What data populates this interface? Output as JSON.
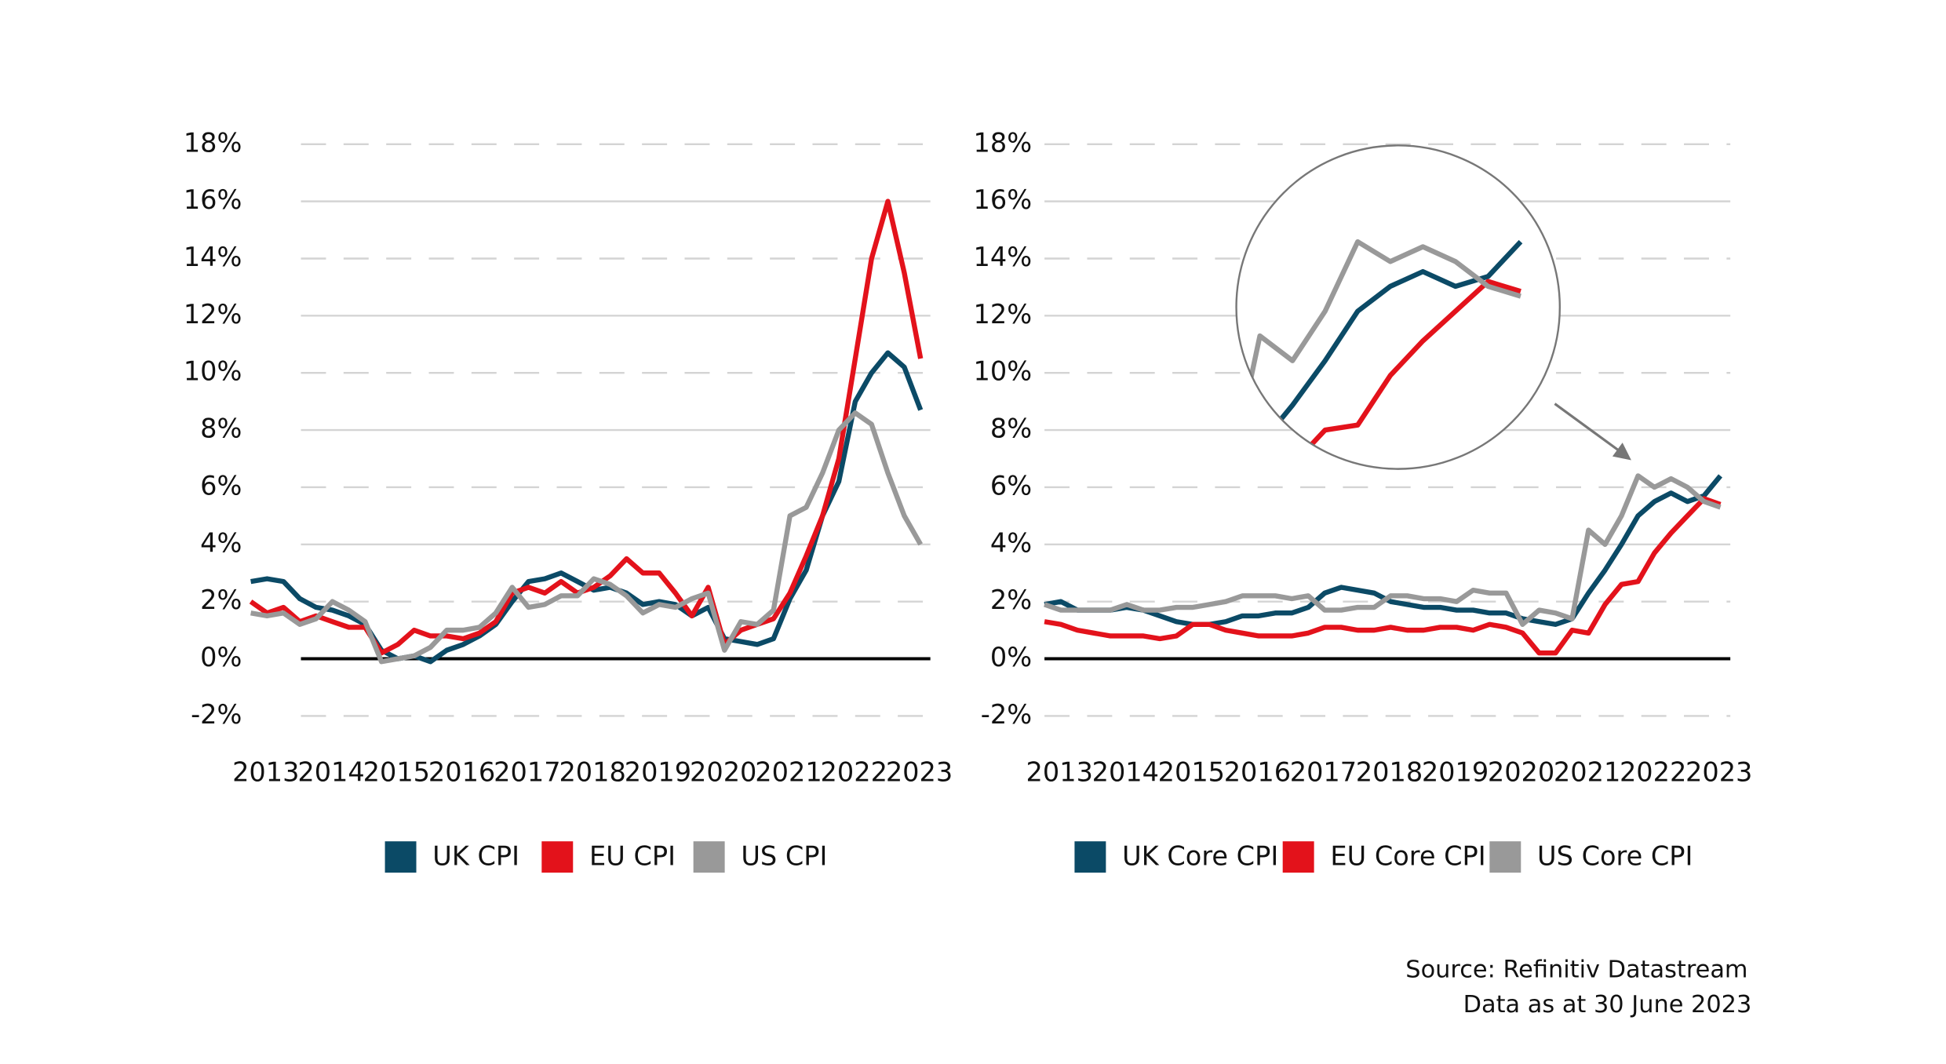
{
  "chart_data": [
    {
      "type": "line",
      "x": [
        2013,
        2013.25,
        2013.5,
        2013.75,
        2014,
        2014.25,
        2014.5,
        2014.75,
        2015,
        2015.25,
        2015.5,
        2015.75,
        2016,
        2016.25,
        2016.5,
        2016.75,
        2017,
        2017.25,
        2017.5,
        2017.75,
        2018,
        2018.25,
        2018.5,
        2018.75,
        2019,
        2019.25,
        2019.5,
        2019.75,
        2020,
        2020.25,
        2020.5,
        2020.75,
        2021,
        2021.25,
        2021.5,
        2021.75,
        2022,
        2022.25,
        2022.5,
        2022.75,
        2023,
        2023.25
      ],
      "xlim": [
        2013,
        2023.4
      ],
      "xticks": [
        2013,
        2014,
        2015,
        2016,
        2017,
        2018,
        2019,
        2020,
        2021,
        2022,
        2023
      ],
      "ylim": [
        -2,
        18
      ],
      "yticks": [
        {
          "value": -2,
          "label": "-2%"
        },
        {
          "value": 0,
          "label": "0%"
        },
        {
          "value": 2,
          "label": "2%"
        },
        {
          "value": 4,
          "label": "4%"
        },
        {
          "value": 6,
          "label": "6%"
        },
        {
          "value": 8,
          "label": "8%"
        },
        {
          "value": 10,
          "label": "10%"
        },
        {
          "value": 12,
          "label": "12%"
        },
        {
          "value": 14,
          "label": "14%"
        },
        {
          "value": 16,
          "label": "16%"
        },
        {
          "value": 18,
          "label": "18%"
        }
      ],
      "grid": true,
      "series": [
        {
          "name": "UK CPI",
          "color": "#0b4a66",
          "values": [
            2.7,
            2.8,
            2.7,
            2.1,
            1.8,
            1.7,
            1.5,
            1.2,
            0.3,
            0.0,
            0.1,
            -0.1,
            0.3,
            0.5,
            0.8,
            1.2,
            2.0,
            2.7,
            2.8,
            3.0,
            2.7,
            2.4,
            2.5,
            2.3,
            1.9,
            2.0,
            1.9,
            1.5,
            1.8,
            0.7,
            0.6,
            0.5,
            0.7,
            2.1,
            3.1,
            5.0,
            6.2,
            9.0,
            10.0,
            10.7,
            10.2,
            8.7
          ]
        },
        {
          "name": "EU CPI",
          "color": "#e3121b",
          "values": [
            2.0,
            1.6,
            1.8,
            1.3,
            1.5,
            1.3,
            1.1,
            1.1,
            0.2,
            0.5,
            1.0,
            0.8,
            0.8,
            0.7,
            0.9,
            1.3,
            2.3,
            2.5,
            2.3,
            2.7,
            2.3,
            2.5,
            2.9,
            3.5,
            3.0,
            3.0,
            2.3,
            1.5,
            2.5,
            0.5,
            1.0,
            1.2,
            1.4,
            2.3,
            3.6,
            5.0,
            7.0,
            10.5,
            14.0,
            16.0,
            13.5,
            10.5
          ]
        },
        {
          "name": "US CPI",
          "color": "#999999",
          "values": [
            1.6,
            1.5,
            1.6,
            1.2,
            1.4,
            2.0,
            1.7,
            1.3,
            -0.1,
            0.0,
            0.1,
            0.4,
            1.0,
            1.0,
            1.1,
            1.6,
            2.5,
            1.8,
            1.9,
            2.2,
            2.2,
            2.8,
            2.6,
            2.2,
            1.6,
            1.9,
            1.8,
            2.1,
            2.3,
            0.3,
            1.3,
            1.2,
            1.7,
            5.0,
            5.3,
            6.5,
            8.0,
            8.6,
            8.2,
            6.5,
            5.0,
            4.0
          ]
        }
      ]
    },
    {
      "type": "line",
      "x": [
        2013,
        2013.25,
        2013.5,
        2013.75,
        2014,
        2014.25,
        2014.5,
        2014.75,
        2015,
        2015.25,
        2015.5,
        2015.75,
        2016,
        2016.25,
        2016.5,
        2016.75,
        2017,
        2017.25,
        2017.5,
        2017.75,
        2018,
        2018.25,
        2018.5,
        2018.75,
        2019,
        2019.25,
        2019.5,
        2019.75,
        2020,
        2020.25,
        2020.5,
        2020.75,
        2021,
        2021.25,
        2021.5,
        2021.75,
        2022,
        2022.25,
        2022.5,
        2022.75,
        2023,
        2023.25
      ],
      "xlim": [
        2013,
        2023.4
      ],
      "xticks": [
        2013,
        2014,
        2015,
        2016,
        2017,
        2018,
        2019,
        2020,
        2021,
        2022,
        2023
      ],
      "ylim": [
        -2,
        18
      ],
      "yticks": [
        {
          "value": -2,
          "label": "-2%"
        },
        {
          "value": 0,
          "label": "0%"
        },
        {
          "value": 2,
          "label": "2%"
        },
        {
          "value": 4,
          "label": "4%"
        },
        {
          "value": 6,
          "label": "6%"
        },
        {
          "value": 8,
          "label": "8%"
        },
        {
          "value": 10,
          "label": "10%"
        },
        {
          "value": 12,
          "label": "12%"
        },
        {
          "value": 14,
          "label": "14%"
        },
        {
          "value": 16,
          "label": "16%"
        },
        {
          "value": 18,
          "label": "18%"
        }
      ],
      "grid": true,
      "zoom": {
        "xlim": [
          2021.06,
          2023.56
        ],
        "ylim": [
          1.79,
          8.37
        ]
      },
      "series": [
        {
          "name": "UK Core CPI",
          "color": "#0b4a66",
          "values": [
            1.9,
            2.0,
            1.7,
            1.7,
            1.7,
            1.8,
            1.7,
            1.5,
            1.3,
            1.2,
            1.2,
            1.3,
            1.5,
            1.5,
            1.6,
            1.6,
            1.8,
            2.3,
            2.5,
            2.4,
            2.3,
            2.0,
            1.9,
            1.8,
            1.8,
            1.7,
            1.7,
            1.6,
            1.6,
            1.4,
            1.3,
            1.2,
            1.4,
            2.3,
            3.1,
            4.0,
            5.0,
            5.5,
            5.8,
            5.5,
            5.7,
            6.4
          ]
        },
        {
          "name": "EU Core CPI",
          "color": "#e3121b",
          "values": [
            1.3,
            1.2,
            1.0,
            0.9,
            0.8,
            0.8,
            0.8,
            0.7,
            0.8,
            1.2,
            1.2,
            1.0,
            0.9,
            0.8,
            0.8,
            0.8,
            0.9,
            1.1,
            1.1,
            1.0,
            1.0,
            1.1,
            1.0,
            1.0,
            1.1,
            1.1,
            1.0,
            1.2,
            1.1,
            0.9,
            0.2,
            0.2,
            1.0,
            0.9,
            1.9,
            2.6,
            2.7,
            3.7,
            4.4,
            5.0,
            5.6,
            5.4
          ]
        },
        {
          "name": "US Core CPI",
          "color": "#999999",
          "values": [
            1.9,
            1.7,
            1.7,
            1.7,
            1.7,
            1.9,
            1.7,
            1.7,
            1.8,
            1.8,
            1.9,
            2.0,
            2.2,
            2.2,
            2.2,
            2.1,
            2.2,
            1.7,
            1.7,
            1.8,
            1.8,
            2.2,
            2.2,
            2.1,
            2.1,
            2.0,
            2.4,
            2.3,
            2.3,
            1.2,
            1.7,
            1.6,
            1.4,
            4.5,
            4.0,
            5.0,
            6.4,
            6.0,
            6.3,
            6.0,
            5.5,
            5.3
          ]
        }
      ]
    }
  ],
  "footer": [
    "Source: Refinitiv Datastream",
    "Data as at 30 June 2023"
  ]
}
